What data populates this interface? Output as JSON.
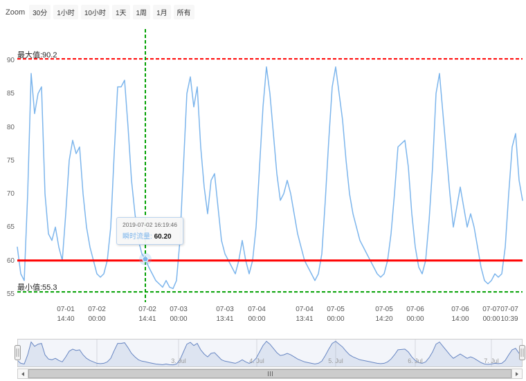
{
  "colors": {
    "series": "#7cb5ec",
    "navigator_series": "#6685c2",
    "max_line": "#ff0000",
    "threshold_line": "#ff0000",
    "min_line": "#00a000",
    "crosshair": "#00a000"
  },
  "range_selector": {
    "zoom_label": "Zoom",
    "buttons": [
      "30分",
      "1小时",
      "10小时",
      "1天",
      "1周",
      "1月",
      "所有"
    ]
  },
  "tooltip": {
    "datetime": "2019-07-02 16:19:46",
    "series_label": "瞬时流量:",
    "value": "60.20"
  },
  "chart_data": {
    "type": "line",
    "title": "",
    "xlabel": "",
    "ylabel": "",
    "grid": "off",
    "legend": "none",
    "ylim": [
      53.8,
      94.3
    ],
    "y_ticks": [
      90,
      85,
      80,
      75,
      70,
      65,
      60,
      55
    ],
    "x_ticks": [
      {
        "date": "07-01",
        "time": "14:40"
      },
      {
        "date": "07-02",
        "time": "00:00"
      },
      {
        "date": "07-02",
        "time": "14:41"
      },
      {
        "date": "07-03",
        "time": "00:00"
      },
      {
        "date": "07-03",
        "time": "13:41"
      },
      {
        "date": "07-04",
        "time": "00:00"
      },
      {
        "date": "07-04",
        "time": "13:41"
      },
      {
        "date": "07-05",
        "time": "00:00"
      },
      {
        "date": "07-05",
        "time": "14:20"
      },
      {
        "date": "07-06",
        "time": "00:00"
      },
      {
        "date": "07-06",
        "time": "14:00"
      },
      {
        "date": "07-07",
        "time": "00:00"
      },
      {
        "date": "07-07",
        "time": "10:39"
      }
    ],
    "plot_lines": {
      "max": {
        "label": "最大值:90.2",
        "value": 90.2
      },
      "threshold": {
        "value": 60
      },
      "min": {
        "label": "最小值:55.3",
        "value": 55.3
      }
    },
    "selected_point": {
      "datetime": "2019-07-02 16:19:46",
      "value": 60.2
    },
    "navigator_labels": [
      "3. Jul",
      "4. Jul",
      "5. Jul",
      "6. Jul",
      "7. Jul"
    ],
    "sampling": "values evenly spaced across visible x-range 07-01 to 07-07 10:39",
    "series": [
      {
        "name": "瞬时流量",
        "values": [
          62,
          58,
          57,
          70,
          88,
          82,
          85,
          86,
          70,
          64,
          63,
          65,
          62,
          60,
          67,
          75,
          78,
          76,
          77,
          70,
          65,
          62,
          60,
          58,
          57.5,
          58,
          60,
          65,
          76,
          86,
          86,
          87,
          80,
          72,
          67,
          63,
          61,
          60.2,
          59,
          58,
          57,
          56.5,
          56,
          57,
          56,
          55.8,
          57,
          63,
          74,
          85,
          87.5,
          83,
          86,
          77,
          71,
          67,
          72,
          73,
          68,
          63,
          61,
          60,
          59,
          58,
          60,
          63,
          60,
          58,
          60,
          65,
          74,
          83,
          89,
          85,
          79,
          73,
          69,
          70,
          72,
          70,
          67,
          64,
          62,
          60,
          59,
          58,
          57,
          58,
          61,
          69,
          78,
          86,
          89,
          85,
          81,
          75,
          70,
          67,
          65,
          63,
          62,
          61,
          60,
          59,
          58,
          57.5,
          58,
          60,
          64,
          70,
          77,
          77.5,
          78,
          74,
          67,
          62,
          59,
          58,
          60,
          66,
          74,
          85,
          88,
          82,
          76,
          70,
          65,
          68,
          71,
          68,
          65,
          67,
          65,
          62,
          59,
          57,
          56.5,
          57,
          58,
          57.5,
          58,
          62,
          70,
          77,
          79,
          72,
          69
        ]
      }
    ]
  }
}
